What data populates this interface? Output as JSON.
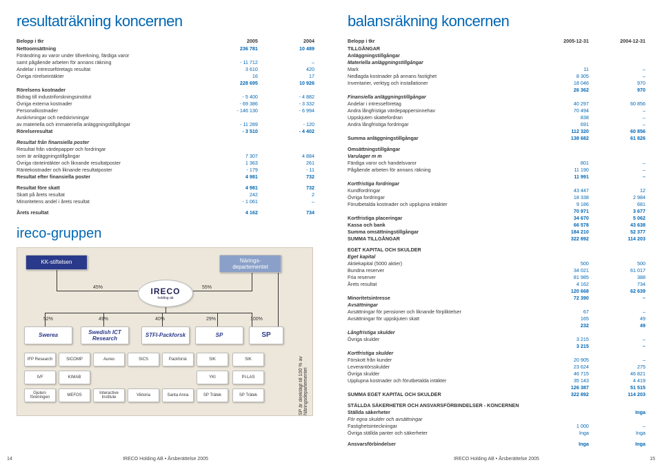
{
  "footer_text": "IRECO Holding AB • Årsberättelse 2005",
  "page_left_num": "14",
  "page_right_num": "15",
  "left": {
    "title": "resultaträkning koncernen",
    "brand": "ireco-gruppen",
    "head": {
      "c0": "Belopp i tkr",
      "c1": "2005",
      "c2": "2004"
    },
    "rows": [
      {
        "l": "Nettoomsättning",
        "v1": "236 781",
        "v2": "10 489",
        "b": 1
      },
      {
        "l": "Förändring av varor under tillverkning, färdiga varor",
        "v1": "",
        "v2": ""
      },
      {
        "l": "samt pågående arbeten för annans räkning",
        "v1": "- 11 712",
        "v2": "–"
      },
      {
        "l": "Andelar i intresseföretags resultat",
        "v1": "3 610",
        "v2": "420"
      },
      {
        "l": "Övriga rörelseintäkter",
        "v1": "16",
        "v2": "17"
      },
      {
        "l": "",
        "v1": "228 695",
        "v2": "10 926",
        "b": 1
      },
      {
        "l": "Rörelsens kostnader",
        "v1": "",
        "v2": "",
        "b": 1
      },
      {
        "l": "Bidrag till industriforskningsinstitut",
        "v1": "- 5 400",
        "v2": "- 4 882"
      },
      {
        "l": "Övriga externa kostnader",
        "v1": "- 69 386",
        "v2": "- 3 332"
      },
      {
        "l": "Personalkostnader",
        "v1": "- 146 130",
        "v2": "- 6 994"
      },
      {
        "l": "Avskrivningar och nedskrivningar",
        "v1": "",
        "v2": ""
      },
      {
        "l": "av materiella och immateriella anläggningstillgångar",
        "v1": "- 11 289",
        "v2": "- 120"
      },
      {
        "l": "Rörelseresultat",
        "v1": "- 3 510",
        "v2": "- 4 402",
        "b": 1
      },
      {
        "blank": 1
      },
      {
        "l": "Resultat från finansiella poster",
        "v1": "",
        "v2": "",
        "b": 1,
        "i": 1
      },
      {
        "l": "Resultat från värdepapper och fordringar",
        "v1": "",
        "v2": ""
      },
      {
        "l": "som är anläggningstillgångar",
        "v1": "7 307",
        "v2": "4 884"
      },
      {
        "l": "Övriga ränteintäkter och liknande resultatposter",
        "v1": "1 363",
        "v2": "261"
      },
      {
        "l": "Räntekostnader och liknande resultatposter",
        "v1": "- 179",
        "v2": "- 11"
      },
      {
        "l": "Resultat efter finansiella poster",
        "v1": "4 981",
        "v2": "732",
        "b": 1
      },
      {
        "blank": 1
      },
      {
        "l": "Resultat före skatt",
        "v1": "4 981",
        "v2": "732",
        "b": 1
      },
      {
        "l": "Skatt på årets resultat",
        "v1": "242",
        "v2": "2"
      },
      {
        "l": "Minoritetens andel i årets resultat",
        "v1": "- 1 061",
        "v2": "–"
      },
      {
        "blank": 1
      },
      {
        "l": "Årets resultat",
        "v1": "4 162",
        "v2": "734",
        "b": 1
      }
    ],
    "diagram": {
      "kk": "KK-stiftelsen",
      "narings": "Närings-\ndepartementet",
      "ireco": "IRECO",
      "ireco_sub": "holding ab",
      "p45": "45%",
      "p55": "55%",
      "p52": "52%",
      "p49": "49%",
      "p40": "40%",
      "p29": "29%",
      "p100": "100%",
      "row2": [
        "Swerea",
        "Swedish ICT Research",
        "STFI-Packforsk",
        "SP"
      ],
      "row3a": [
        "IFP Research",
        "SICOMP",
        "Aureo",
        "SICS",
        "Packforsk",
        "SIK"
      ],
      "row3b": [
        "IVF",
        "KIMAB",
        "",
        "",
        "",
        "YKI"
      ],
      "row3c": [
        "Gjuteri-föreningen",
        "MEFOS",
        "Interactive Institute",
        "Viktoria",
        "Santa Anna",
        "SP Trätek"
      ],
      "vtext": "SP är direktägt till 100 % av Näringsdepartementet"
    }
  },
  "right": {
    "title": "balansräkning koncernen",
    "head": {
      "c0": "Belopp i tkr",
      "c1": "2005-12-31",
      "c2": "2004-12-31"
    },
    "rows": [
      {
        "l": "TILLGÅNGAR",
        "b": 1
      },
      {
        "l": "Anläggningstillgångar",
        "b": 1
      },
      {
        "l": "Materiella anläggningstillgångar",
        "b": 1,
        "i": 1
      },
      {
        "l": "Mark",
        "v1": "11",
        "v2": "–"
      },
      {
        "l": "Nedlagda kostnader på annans fastighet",
        "v1": "8 305",
        "v2": "–"
      },
      {
        "l": "Inventarier, verktyg och installationer",
        "v1": "18 046",
        "v2": "970"
      },
      {
        "l": "",
        "v1": "26 362",
        "v2": "970",
        "b": 1
      },
      {
        "l": "Finansiella anläggningstillgångar",
        "b": 1,
        "i": 1
      },
      {
        "l": "Andelar i intresseföretag",
        "v1": "40 297",
        "v2": "60 856"
      },
      {
        "l": "Andra långfristiga värdepappersinnehav",
        "v1": "70 494",
        "v2": "–"
      },
      {
        "l": "Uppskjuten skattefordran",
        "v1": "838",
        "v2": "–"
      },
      {
        "l": "Andra långfristiga fordringar",
        "v1": "691",
        "v2": "–"
      },
      {
        "l": "",
        "v1": "112 320",
        "v2": "60 856",
        "b": 1
      },
      {
        "l": "Summa anläggningstillgångar",
        "v1": "138 682",
        "v2": "61 826",
        "b": 1
      },
      {
        "blank": 1
      },
      {
        "l": "Omsättningstillgångar",
        "b": 1
      },
      {
        "l": "Varulager m m",
        "b": 1,
        "i": 1
      },
      {
        "l": "Färdiga varor och handelsvaror",
        "v1": "801",
        "v2": "–"
      },
      {
        "l": "Pågående arbeten för annans räkning",
        "v1": "11 190",
        "v2": "–"
      },
      {
        "l": "",
        "v1": "11 991",
        "v2": "–",
        "b": 1
      },
      {
        "l": "Kortfristiga fordringar",
        "b": 1,
        "i": 1
      },
      {
        "l": "Kundfordringar",
        "v1": "43 447",
        "v2": "12"
      },
      {
        "l": "Övriga fordringar",
        "v1": "18 338",
        "v2": "2 984"
      },
      {
        "l": "Förutbetalda kostnader och upplupna intäkter",
        "v1": "9 186",
        "v2": "681"
      },
      {
        "l": "",
        "v1": "70 971",
        "v2": "3 677",
        "b": 1
      },
      {
        "l": "Kortfristiga placeringar",
        "v1": "34 670",
        "v2": "5 062",
        "b": 1
      },
      {
        "l": "Kassa och bank",
        "v1": "66 578",
        "v2": "43 638",
        "b": 1
      },
      {
        "l": "Summa omsättningstillgångar",
        "v1": "184 210",
        "v2": "52 377",
        "b": 1
      },
      {
        "l": "SUMMA TILLGÅNGAR",
        "v1": "322 892",
        "v2": "114 203",
        "b": 1
      },
      {
        "blank": 1
      },
      {
        "l": "EGET KAPITAL OCH SKULDER",
        "b": 1
      },
      {
        "l": "Eget kapital",
        "b": 1,
        "i": 1
      },
      {
        "l": "Aktiekapital (5000 aktier)",
        "v1": "500",
        "v2": "500"
      },
      {
        "l": "Bundna reserver",
        "v1": "34 021",
        "v2": "61 017"
      },
      {
        "l": "Fria reserver",
        "v1": "81 985",
        "v2": "388"
      },
      {
        "l": "Årets resultat",
        "v1": "4 162",
        "v2": "734"
      },
      {
        "l": "",
        "v1": "120 668",
        "v2": "62 639",
        "b": 1
      },
      {
        "l": "Minoritetsintresse",
        "v1": "72 390",
        "v2": "–",
        "b": 1
      },
      {
        "l": "Avsättningar",
        "b": 1,
        "i": 1
      },
      {
        "l": "Avsättningar för pensioner och liknande förpliktelser",
        "v1": "67",
        "v2": "–"
      },
      {
        "l": "Avsättningar för uppskjuten skatt",
        "v1": "165",
        "v2": "49"
      },
      {
        "l": "",
        "v1": "232",
        "v2": "49",
        "b": 1
      },
      {
        "l": "Långfristiga skulder",
        "b": 1,
        "i": 1
      },
      {
        "l": "Övriga skulder",
        "v1": "3 215",
        "v2": "–"
      },
      {
        "l": "",
        "v1": "3 215",
        "v2": "–",
        "b": 1
      },
      {
        "l": "Kortfristiga skulder",
        "b": 1,
        "i": 1
      },
      {
        "l": "Förskott från kunder",
        "v1": "20 905",
        "v2": "–"
      },
      {
        "l": "Leverantörsskulder",
        "v1": "23 624",
        "v2": "275"
      },
      {
        "l": "Övriga skulder",
        "v1": "46 715",
        "v2": "46 821"
      },
      {
        "l": "Upplupna kostnader och förutbetalda intäkter",
        "v1": "35 143",
        "v2": "4 419"
      },
      {
        "l": "",
        "v1": "126 387",
        "v2": "51 515",
        "b": 1
      },
      {
        "l": "SUMMA EGET KAPITAL OCH SKULDER",
        "v1": "322 892",
        "v2": "114 203",
        "b": 1
      },
      {
        "blank": 1
      },
      {
        "l": "STÄLLDA SÄKERHETER OCH ANSVARSFÖRBINDELSER - KONCERNEN",
        "b": 1
      },
      {
        "l": "Ställda säkerheter",
        "v1": "",
        "v2": "Inga",
        "b": 1
      },
      {
        "l": "För egna skulder och avsättningar",
        "i": 1
      },
      {
        "l": "Fastighetsinteckningar",
        "v1": "1 000",
        "v2": "–"
      },
      {
        "l": "Övriga ställda panter och säkerheter",
        "v1": "Inga",
        "v2": "Inga"
      },
      {
        "blank": 1
      },
      {
        "l": "Ansvarsförbindelser",
        "v1": "Inga",
        "v2": "Inga",
        "b": 1
      }
    ]
  }
}
